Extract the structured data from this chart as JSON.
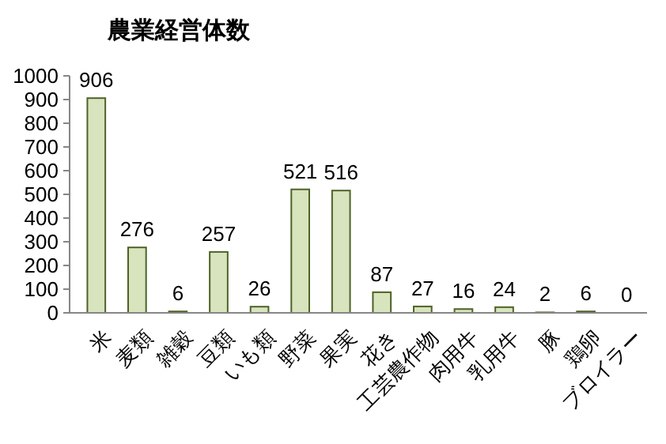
{
  "chart_data": {
    "type": "bar",
    "title": "農業経営体数",
    "categories": [
      "米",
      "麦類",
      "雑穀",
      "豆類",
      "いも類",
      "野菜",
      "果実",
      "花き",
      "工芸農作物",
      "肉用牛",
      "乳用牛",
      "豚",
      "鶏卵",
      "ブロイラー"
    ],
    "values": [
      906,
      276,
      6,
      257,
      26,
      521,
      516,
      87,
      27,
      16,
      24,
      2,
      6,
      0
    ],
    "color": "#d7e4bd",
    "ylim": [
      0,
      1000
    ],
    "yticks": [
      0,
      100,
      200,
      300,
      400,
      500,
      600,
      700,
      800,
      900,
      1000
    ],
    "data_labels": true
  }
}
